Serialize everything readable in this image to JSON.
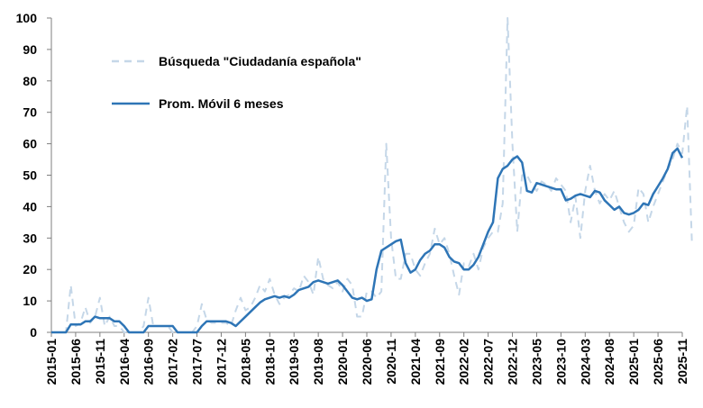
{
  "chart_data": {
    "type": "line",
    "title": "",
    "xlabel": "",
    "ylabel": "",
    "ylim": [
      0,
      100
    ],
    "yticks": [
      0,
      10,
      20,
      30,
      40,
      50,
      60,
      70,
      80,
      90,
      100
    ],
    "xtick_labels": [
      "2015-01",
      "2015-06",
      "2015-11",
      "2016-04",
      "2016-09",
      "2017-02",
      "2017-07",
      "2017-12",
      "2018-05",
      "2018-10",
      "2019-03",
      "2019-08",
      "2020-01",
      "2020-06",
      "2020-11",
      "2021-04",
      "2021-09",
      "2022-02",
      "2022-07",
      "2022-12",
      "2023-05",
      "2023-10",
      "2024-03",
      "2024-08",
      "2025-01",
      "2025-06",
      "2025-11"
    ],
    "grid": false,
    "legend_position": "top-left",
    "x_start": "2015-01",
    "series": [
      {
        "name": "Búsqueda \"Ciudadanía española\"",
        "style": "dashed",
        "color": "#c5d7e8",
        "values": [
          0,
          0,
          0,
          0,
          15,
          2,
          3,
          8,
          3,
          5,
          11,
          2,
          5,
          2,
          2,
          0,
          0,
          0,
          0,
          2,
          11,
          2,
          2,
          2,
          2,
          0,
          0,
          0,
          0,
          0,
          2,
          9,
          4,
          3,
          3,
          3,
          3,
          2,
          7,
          11,
          7,
          8,
          11,
          15,
          13,
          17,
          12,
          9,
          11,
          12,
          14,
          13,
          18,
          16,
          12,
          24,
          17,
          15,
          14,
          16,
          13,
          17,
          15,
          5,
          5,
          13,
          13,
          11,
          13,
          60,
          30,
          17,
          17,
          25,
          25,
          20,
          18,
          22,
          25,
          33,
          28,
          30,
          25,
          18,
          12,
          22,
          21,
          25,
          20,
          27,
          30,
          32,
          32,
          41,
          100,
          60,
          32,
          50,
          50,
          47,
          45,
          48,
          47,
          45,
          49,
          47,
          45,
          35,
          43,
          30,
          45,
          53,
          45,
          41,
          44,
          42,
          45,
          40,
          35,
          32,
          34,
          46,
          44,
          35,
          40,
          44,
          48,
          52,
          55,
          60,
          57,
          72,
          28
        ]
      },
      {
        "name": "Prom. Móvil 6 meses",
        "style": "solid",
        "color": "#2e75b6",
        "values": [
          0,
          0,
          0,
          0,
          2.5,
          2.5,
          2.5,
          3.5,
          3.5,
          5,
          4.5,
          4.5,
          4.5,
          3.5,
          3.5,
          2,
          0,
          0,
          0,
          0,
          2,
          2,
          2,
          2,
          2,
          2,
          0,
          0,
          0,
          0,
          0,
          2,
          3.5,
          3.5,
          3.5,
          3.5,
          3.5,
          3,
          2,
          3.5,
          5,
          6.5,
          8,
          9.5,
          10.5,
          11,
          11.5,
          11,
          11.5,
          11,
          12,
          13.5,
          14,
          14.5,
          16,
          16.5,
          16,
          15.5,
          16,
          16.5,
          15,
          13,
          11,
          10.5,
          11,
          10,
          10.5,
          20,
          26,
          27,
          28,
          29,
          29.5,
          22,
          19,
          20,
          23,
          25,
          26,
          28,
          28,
          27,
          24,
          22.5,
          22,
          20,
          20,
          21.5,
          24,
          28,
          32,
          35,
          49,
          52,
          53,
          55,
          56,
          54,
          45,
          44.5,
          47.5,
          47,
          46.5,
          46,
          45.5,
          45.5,
          42,
          42.5,
          43.5,
          44,
          43.5,
          43,
          45,
          44.5,
          42,
          40.5,
          39,
          40,
          38,
          37.5,
          38,
          39,
          41,
          40.5,
          44,
          46.5,
          49,
          52,
          57,
          58.5,
          55.5
        ]
      }
    ]
  }
}
